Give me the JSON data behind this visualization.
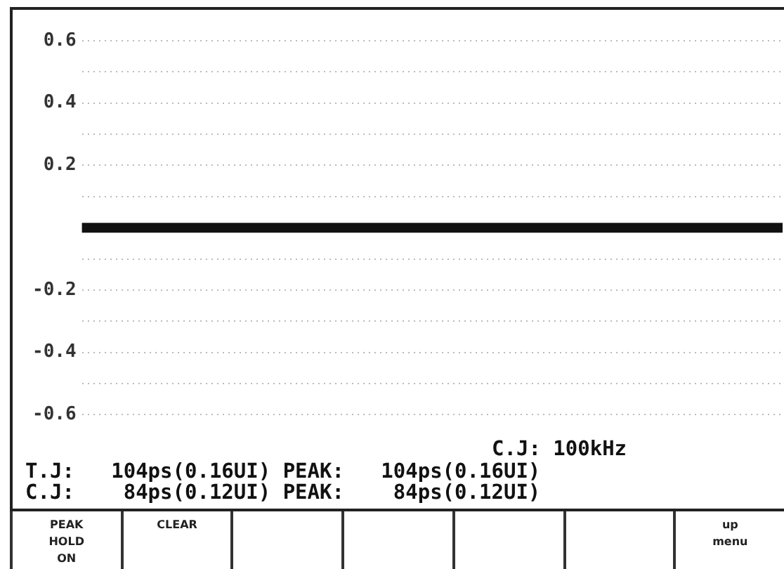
{
  "chart_data": {
    "type": "line",
    "categories": [
      null,
      null,
      null,
      null,
      null,
      null,
      null,
      null,
      null,
      null,
      null,
      null,
      null,
      null,
      null,
      null,
      null,
      null,
      null,
      null,
      null,
      null,
      null,
      null,
      null,
      null,
      null,
      null,
      null,
      null,
      null,
      null,
      null,
      null,
      null,
      null,
      null,
      null,
      null,
      null
    ],
    "series": [
      {
        "color": "#111111",
        "values": [
          0,
          0,
          0,
          0,
          0,
          0,
          0,
          0,
          0,
          0,
          0,
          0,
          0,
          0,
          0,
          0,
          0,
          0,
          0,
          0,
          0,
          0,
          0,
          0,
          0,
          0,
          0,
          0,
          0,
          0,
          0,
          0,
          0,
          0,
          0,
          0,
          0,
          0,
          0,
          0
        ]
      }
    ],
    "ylim": [
      -0.6,
      0.6
    ],
    "yticks": [
      -0.6,
      {
        "value": -0.5,
        "label": null
      },
      -0.4,
      {
        "value": -0.3,
        "label": null
      },
      -0.2,
      {
        "value": -0.1,
        "label": null
      },
      {
        "value": 0.1,
        "label": null
      },
      0.2,
      {
        "value": 0.3,
        "label": null
      },
      0.4,
      {
        "value": 0.5,
        "label": null
      },
      0.6
    ],
    "grid": "y",
    "tick_labels": "y",
    "marker": "none",
    "legend": false,
    "annotations": [
      "C.J: 100kHz",
      "T.J:   104ps(0.16UI) PEAK:   104ps(0.16UI)",
      "C.J:    84ps(0.12UI) PEAK:    84ps(0.12UI)",
      "PEAK HOLD ON",
      "CLEAR",
      "up menu"
    ]
  }
}
